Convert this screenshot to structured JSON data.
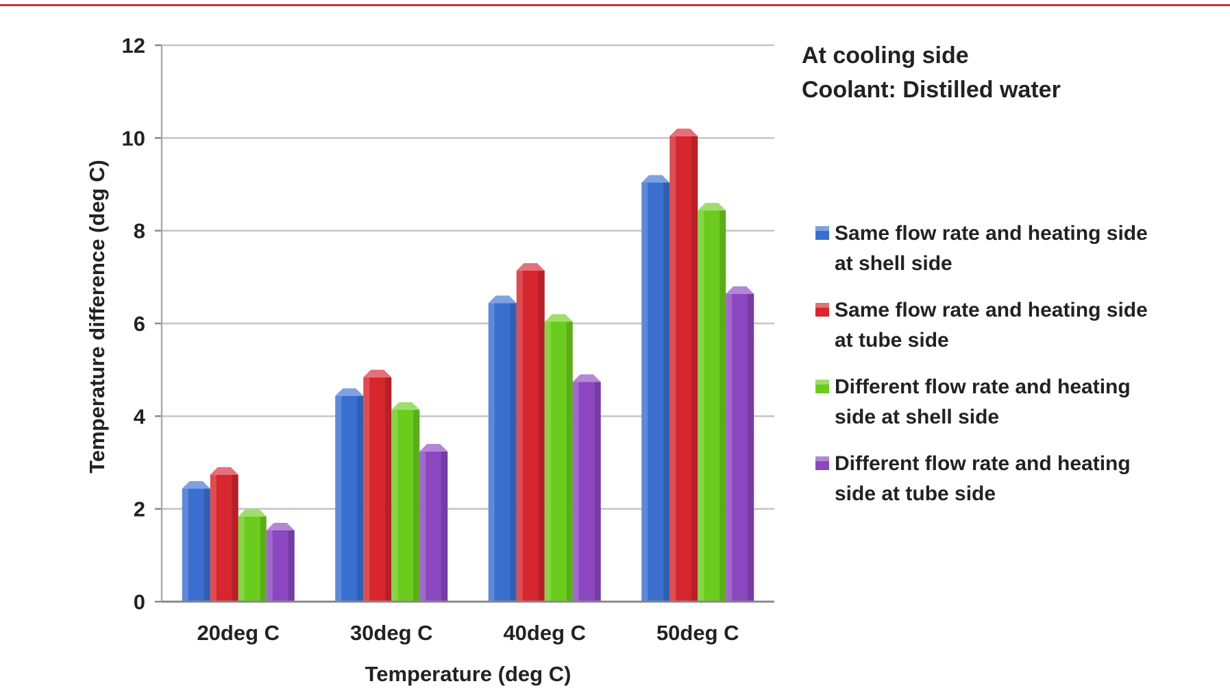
{
  "chart_data": {
    "type": "bar",
    "categories": [
      "20deg C",
      "30deg C",
      "40deg C",
      "50deg C"
    ],
    "series": [
      {
        "name": "Same flow rate and heating side at shell side",
        "name_lines": [
          "Same flow rate and heating side",
          "at shell side"
        ],
        "color": "#3a6fd0",
        "values": [
          2.6,
          4.6,
          6.6,
          9.2
        ]
      },
      {
        "name": "Same flow rate and heating side at tube side",
        "name_lines": [
          "Same flow rate and heating side",
          "at tube side"
        ],
        "color": "#d6262e",
        "values": [
          2.9,
          5.0,
          7.3,
          10.2
        ]
      },
      {
        "name": "Different flow rate and heating side at shell side",
        "name_lines": [
          "Different flow rate and heating",
          "side at shell side"
        ],
        "color": "#6ccc1e",
        "values": [
          2.0,
          4.3,
          6.2,
          8.6
        ]
      },
      {
        "name": "Different flow rate and heating side  at tube side",
        "name_lines": [
          "Different flow rate and heating",
          "side  at tube side"
        ],
        "color": "#8a47c0",
        "values": [
          1.7,
          3.4,
          4.9,
          6.8
        ]
      }
    ],
    "title": "",
    "annotations": [
      "At cooling side",
      "Coolant: Distilled water"
    ],
    "xlabel": "Temperature (deg C)",
    "ylabel": "Temperature difference (deg C)",
    "ylim": [
      0,
      12
    ],
    "yticks": [
      0,
      2,
      4,
      6,
      8,
      10,
      12
    ],
    "grid": true,
    "legend_position": "right"
  }
}
